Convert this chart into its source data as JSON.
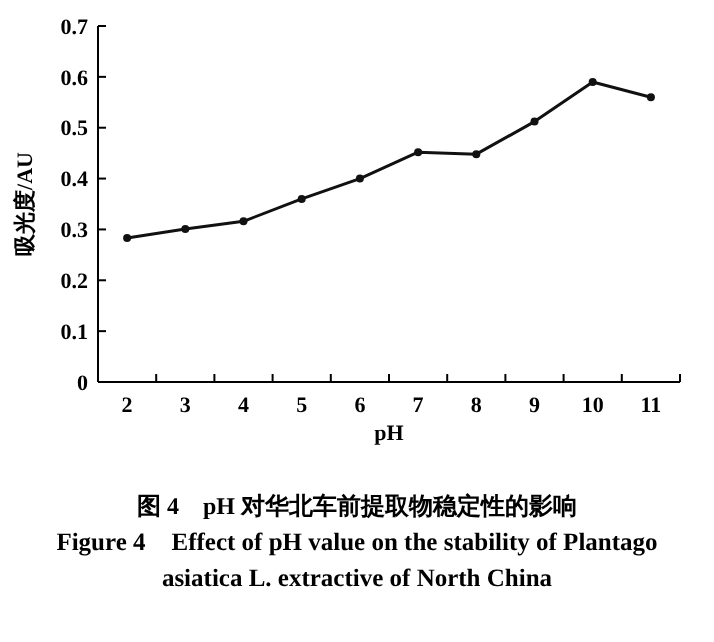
{
  "chart_data": {
    "type": "line",
    "title": "图 4　pH 对华北车前提取物稳定性的影响",
    "subtitle": "Figure 4　Effect of pH value on the stability of Plantago asiatica L. extractive of North China",
    "xlabel": "pH",
    "ylabel": "吸光度/AU",
    "categories": [
      "2",
      "3",
      "4",
      "5",
      "6",
      "7",
      "8",
      "9",
      "10",
      "11"
    ],
    "series": [
      {
        "color": "#111111",
        "values": [
          0.283,
          0.301,
          0.316,
          0.36,
          0.4,
          0.452,
          0.448,
          0.512,
          0.59,
          0.56
        ]
      }
    ],
    "ylim": [
      0,
      0.7
    ],
    "yticks": [
      {
        "value": 0,
        "label": "0"
      },
      0.1,
      0.2,
      0.3,
      0.4,
      0.5,
      0.6,
      0.7
    ],
    "grid": false,
    "marker": "circle",
    "line_style": "solid"
  }
}
